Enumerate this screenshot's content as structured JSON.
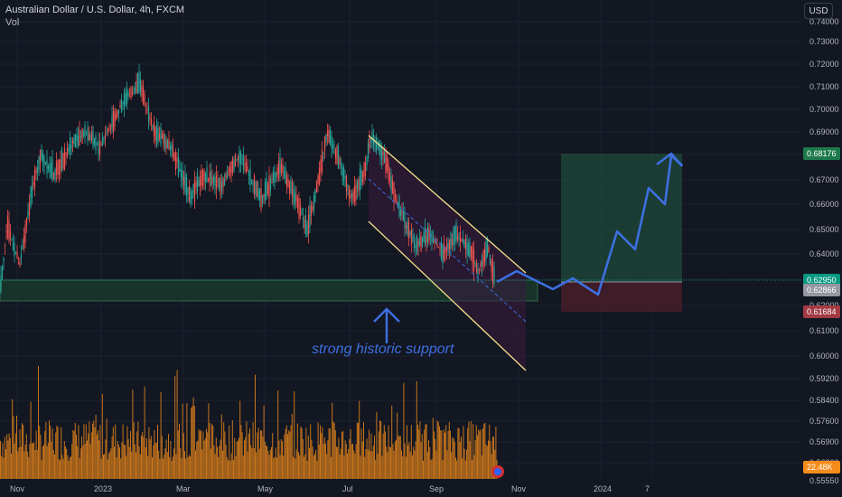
{
  "header": {
    "symbol_title": "Australian Dollar / U.S. Dollar, 4h, FXCM",
    "volume_label": "Vol",
    "currency_button": "USD"
  },
  "annotation": {
    "support_text": "strong historic support"
  },
  "price_axis": {
    "ticks": [
      "0.74000",
      "0.73000",
      "0.72000",
      "0.71000",
      "0.70000",
      "0.69000",
      "0.68000",
      "0.67000",
      "0.66000",
      "0.65000",
      "0.64000",
      "0.63000",
      "0.62000",
      "0.61000",
      "0.60000",
      "0.59200",
      "0.58400",
      "0.57600",
      "0.56900",
      "0.56200",
      "0.55550"
    ],
    "target_label": "0.68176",
    "current_label": "0.62950",
    "entry_label": "0.62866",
    "stop_label": "0.61684",
    "volume_label": "22.48K"
  },
  "time_axis": {
    "labels": [
      "Nov",
      "2023",
      "Mar",
      "May",
      "Jul",
      "Sep",
      "Nov",
      "2024",
      "7"
    ]
  },
  "colors": {
    "background": "#131722",
    "candle_up": "#26a69a",
    "candle_down": "#ef5350",
    "channel": "#f5e08a",
    "projection": "#3d6fe0",
    "volume": "#f58c1a",
    "target_zone": "#1e4a3a",
    "stop_zone": "#4a1e2a",
    "support_zone": "#1b3d2e",
    "current_price": "#089981"
  },
  "chart_data": {
    "type": "candlestick",
    "title": "Australian Dollar / U.S. Dollar, 4h, FXCM",
    "price_key_points": [
      [
        "Nov",
        0.64
      ],
      [
        "Dec",
        0.68
      ],
      [
        "Jan",
        0.69
      ],
      [
        "Feb",
        0.712
      ],
      [
        "Feb",
        0.7
      ],
      [
        "Mar",
        0.662
      ],
      [
        "Apr",
        0.675
      ],
      [
        "May",
        0.658
      ],
      [
        "Jun",
        0.69
      ],
      [
        "Jul",
        0.675
      ],
      [
        "Jul",
        0.69
      ],
      [
        "Aug",
        0.645
      ],
      [
        "Sep",
        0.64
      ],
      [
        "Oct",
        0.63
      ]
    ],
    "levels": {
      "target": 0.68176,
      "current": 0.6295,
      "entry": 0.62866,
      "stop": 0.61684
    },
    "volume_last": "22.48K"
  }
}
